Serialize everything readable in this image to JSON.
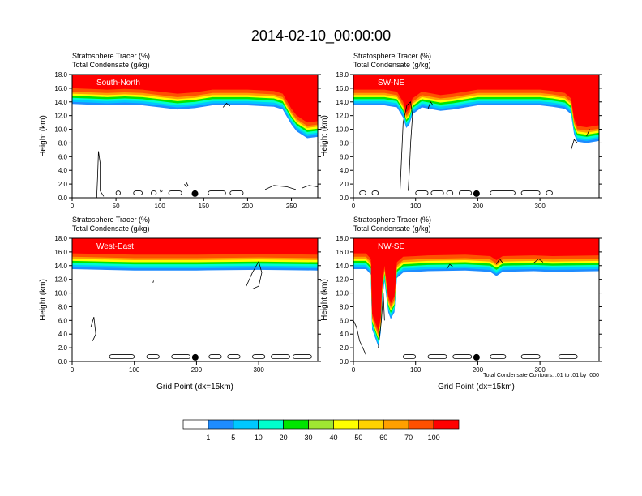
{
  "main_title": "2014-02-10_00:00:00",
  "chart_data": [
    {
      "type": "heatmap",
      "label": "South-North",
      "header_line1": "Stratosphere Tracer   (%)",
      "header_line2": "Total Condensate   (g/kg)",
      "ylabel": "Height (km)",
      "xlabel": "",
      "xlim": [
        0,
        280
      ],
      "ylim": [
        0,
        18
      ],
      "xticks": [
        0,
        50,
        100,
        150,
        200,
        250
      ],
      "yticks": [
        0,
        2,
        4,
        6,
        8,
        10,
        12,
        14,
        16,
        18
      ],
      "tracer_front": [
        [
          0,
          16.0
        ],
        [
          40,
          15.8
        ],
        [
          60,
          15.9
        ],
        [
          80,
          15.8
        ],
        [
          100,
          15.5
        ],
        [
          120,
          15.2
        ],
        [
          140,
          15.4
        ],
        [
          160,
          15.8
        ],
        [
          200,
          15.8
        ],
        [
          230,
          15.6
        ],
        [
          240,
          15.2
        ],
        [
          250,
          13.0
        ],
        [
          256,
          12.0
        ],
        [
          262,
          11.5
        ],
        [
          268,
          11.0
        ],
        [
          280,
          11.2
        ]
      ],
      "condensate_contours": [
        [
          [
            28,
            0
          ],
          [
            29,
            3
          ],
          [
            30,
            6.8
          ],
          [
            32,
            5
          ],
          [
            32,
            1
          ],
          [
            36,
            0.2
          ]
        ],
        [
          [
            100,
            1.2
          ],
          [
            101,
            0.8
          ],
          [
            103,
            1.0
          ]
        ],
        [
          [
            128,
            2.0
          ],
          [
            130,
            1.6
          ],
          [
            132,
            1.8
          ],
          [
            130,
            2.3
          ]
        ],
        [
          [
            220,
            1.2
          ],
          [
            230,
            1.8
          ],
          [
            245,
            1.6
          ],
          [
            255,
            1.2
          ]
        ],
        [
          [
            262,
            1.4
          ],
          [
            270,
            1.8
          ],
          [
            280,
            1.6
          ]
        ],
        [
          [
            172,
            13.2
          ],
          [
            176,
            13.8
          ],
          [
            180,
            13.4
          ]
        ]
      ],
      "condensate_blobs_x": [
        [
          50,
          55
        ],
        [
          70,
          80
        ],
        [
          90,
          96
        ],
        [
          110,
          125
        ],
        [
          155,
          175
        ],
        [
          180,
          195
        ]
      ],
      "marker_x": 140
    },
    {
      "type": "heatmap",
      "label": "SW-NE",
      "header_line1": "Stratosphere Tracer   (%)",
      "header_line2": "Total Condensate   (g/kg)",
      "ylabel": "Height (km)",
      "xlabel": "",
      "xlim": [
        0,
        395
      ],
      "ylim": [
        0,
        18
      ],
      "xticks": [
        0,
        100,
        200,
        300
      ],
      "yticks": [
        0,
        2,
        4,
        6,
        8,
        10,
        12,
        14,
        16,
        18
      ],
      "tracer_front": [
        [
          0,
          15.8
        ],
        [
          50,
          15.8
        ],
        [
          70,
          15.5
        ],
        [
          80,
          14.0
        ],
        [
          85,
          12.5
        ],
        [
          90,
          13.0
        ],
        [
          95,
          14.5
        ],
        [
          110,
          15.5
        ],
        [
          140,
          15.0
        ],
        [
          160,
          15.2
        ],
        [
          200,
          15.8
        ],
        [
          260,
          15.8
        ],
        [
          300,
          15.8
        ],
        [
          320,
          15.6
        ],
        [
          340,
          15.3
        ],
        [
          350,
          14.5
        ],
        [
          355,
          11.5
        ],
        [
          360,
          10.5
        ],
        [
          375,
          10.3
        ],
        [
          395,
          10.6
        ]
      ],
      "condensate_contours": [
        [
          [
            75,
            1.0
          ],
          [
            77,
            5
          ],
          [
            80,
            11
          ],
          [
            86,
            13.5
          ],
          [
            92,
            14
          ],
          [
            95,
            12
          ],
          [
            92,
            8
          ],
          [
            90,
            4
          ],
          [
            88,
            1
          ]
        ],
        [
          [
            120,
            13.0
          ],
          [
            124,
            14.0
          ],
          [
            128,
            13.5
          ]
        ],
        [
          [
            350,
            7.0
          ],
          [
            355,
            8.5
          ],
          [
            360,
            8.0
          ]
        ],
        [
          [
            375,
            9.0
          ],
          [
            380,
            10.0
          ]
        ]
      ],
      "condensate_blobs_x": [
        [
          10,
          20
        ],
        [
          30,
          40
        ],
        [
          100,
          120
        ],
        [
          125,
          145
        ],
        [
          150,
          160
        ],
        [
          170,
          190
        ],
        [
          220,
          260
        ],
        [
          270,
          300
        ],
        [
          310,
          320
        ]
      ],
      "marker_x": 198
    },
    {
      "type": "heatmap",
      "label": "West-East",
      "header_line1": "Stratosphere Tracer   (%)",
      "header_line2": "Total Condensate   (g/kg)",
      "ylabel": "Height (km)",
      "xlabel": "Grid Point (dx=15km)",
      "xlim": [
        0,
        395
      ],
      "ylim": [
        0,
        18
      ],
      "xticks": [
        0,
        100,
        200,
        300
      ],
      "yticks": [
        0,
        2,
        4,
        6,
        8,
        10,
        12,
        14,
        16,
        18
      ],
      "tracer_front": [
        [
          0,
          15.8
        ],
        [
          100,
          15.6
        ],
        [
          200,
          15.6
        ],
        [
          300,
          15.7
        ],
        [
          395,
          15.6
        ]
      ],
      "condensate_contours": [
        [
          [
            280,
            11
          ],
          [
            290,
            13
          ],
          [
            300,
            14.6
          ],
          [
            305,
            13
          ],
          [
            300,
            11
          ],
          [
            290,
            10.6
          ]
        ],
        [
          [
            130,
            11.5
          ],
          [
            131,
            11.8
          ]
        ],
        [
          [
            30,
            5
          ],
          [
            35,
            6.5
          ],
          [
            38,
            4
          ],
          [
            33,
            3
          ]
        ]
      ],
      "condensate_blobs_x": [
        [
          60,
          100
        ],
        [
          120,
          140
        ],
        [
          160,
          190
        ],
        [
          220,
          240
        ],
        [
          250,
          270
        ],
        [
          290,
          310
        ],
        [
          320,
          350
        ],
        [
          355,
          385
        ]
      ],
      "marker_x": 198
    },
    {
      "type": "heatmap",
      "label": "NW-SE",
      "header_line1": "Stratosphere Tracer   (%)",
      "header_line2": "Total Condensate   (g/kg)",
      "ylabel": "Height (km)",
      "xlabel": "Grid Point (dx=15km)",
      "footnote": "Total Condensate Contours: .01 to .01 by .000",
      "xlim": [
        0,
        395
      ],
      "ylim": [
        0,
        18
      ],
      "xticks": [
        0,
        100,
        200,
        300
      ],
      "yticks": [
        0,
        2,
        4,
        6,
        8,
        10,
        12,
        14,
        16,
        18
      ],
      "tracer_front": [
        [
          0,
          15.8
        ],
        [
          20,
          15.8
        ],
        [
          28,
          15.0
        ],
        [
          30,
          7.0
        ],
        [
          34,
          6.0
        ],
        [
          40,
          4.5
        ],
        [
          44,
          6.5
        ],
        [
          46,
          11
        ],
        [
          50,
          14.0
        ],
        [
          56,
          9.5
        ],
        [
          60,
          8.5
        ],
        [
          66,
          9.5
        ],
        [
          70,
          14.5
        ],
        [
          80,
          15.3
        ],
        [
          120,
          15.5
        ],
        [
          180,
          15.6
        ],
        [
          220,
          15.4
        ],
        [
          230,
          14.8
        ],
        [
          240,
          15.4
        ],
        [
          290,
          15.5
        ],
        [
          320,
          15.4
        ],
        [
          395,
          15.5
        ]
      ],
      "condensate_contours": [
        [
          [
            0,
            6
          ],
          [
            5,
            5
          ],
          [
            10,
            3
          ],
          [
            20,
            1
          ]
        ],
        [
          [
            40,
            2
          ],
          [
            45,
            6
          ],
          [
            48,
            10
          ],
          [
            50,
            6
          ]
        ],
        [
          [
            150,
            13.5
          ],
          [
            155,
            14.2
          ],
          [
            160,
            13.8
          ]
        ],
        [
          [
            230,
            14.2
          ],
          [
            235,
            15.0
          ],
          [
            240,
            14.4
          ]
        ],
        [
          [
            290,
            14.4
          ],
          [
            298,
            15.0
          ],
          [
            305,
            14.5
          ]
        ]
      ],
      "condensate_blobs_x": [
        [
          80,
          100
        ],
        [
          120,
          150
        ],
        [
          160,
          190
        ],
        [
          220,
          245
        ],
        [
          270,
          300
        ],
        [
          330,
          360
        ]
      ],
      "marker_x": 198
    }
  ],
  "colorbar": {
    "labels": [
      "1",
      "5",
      "10",
      "20",
      "30",
      "40",
      "50",
      "60",
      "70",
      "100"
    ],
    "colors": [
      "#ffffff",
      "#1e8cff",
      "#00c8ff",
      "#00ffcc",
      "#00e600",
      "#a0e632",
      "#ffff00",
      "#ffd200",
      "#ffa000",
      "#ff5000",
      "#ff0000"
    ]
  }
}
